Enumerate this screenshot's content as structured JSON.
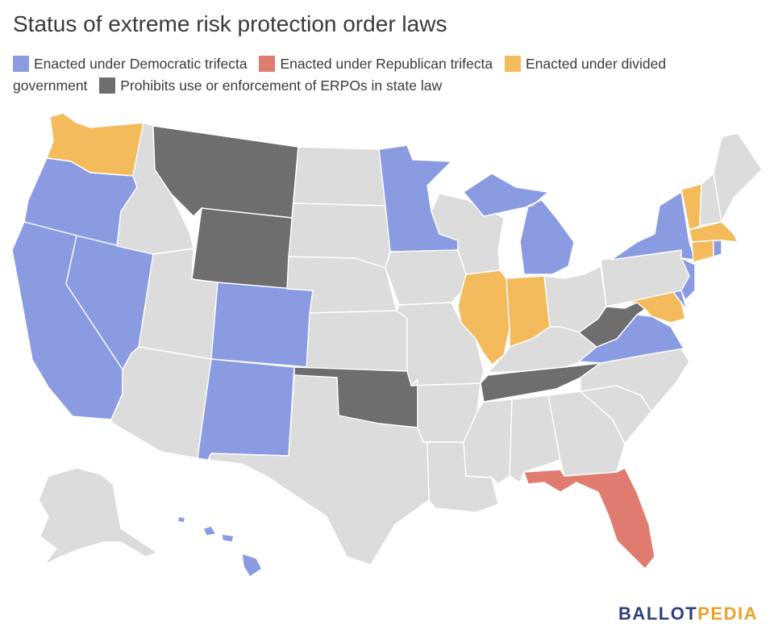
{
  "title": "Status of extreme risk protection order laws",
  "legend": [
    {
      "key": "dem",
      "label": "Enacted under Democratic trifecta",
      "color": "#8a9be2"
    },
    {
      "key": "rep",
      "label": "Enacted under Republican trifecta",
      "color": "#e07b6f"
    },
    {
      "key": "div",
      "label": "Enacted under divided government",
      "color": "#f4bb5c"
    },
    {
      "key": "pro",
      "label": "Prohibits use or enforcement of ERPOs in state law",
      "color": "#6e6e6e"
    }
  ],
  "colors": {
    "none": "#dcdcdc",
    "dem": "#8a9be2",
    "rep": "#e07b6f",
    "div": "#f4bb5c",
    "pro": "#6e6e6e"
  },
  "states": {
    "WA": "div",
    "OR": "dem",
    "CA": "dem",
    "NV": "dem",
    "ID": "none",
    "MT": "pro",
    "WY": "pro",
    "UT": "none",
    "AZ": "none",
    "CO": "dem",
    "NM": "dem",
    "ND": "none",
    "SD": "none",
    "NE": "none",
    "KS": "none",
    "OK": "pro",
    "TX": "none",
    "MN": "dem",
    "IA": "none",
    "MO": "none",
    "AR": "none",
    "LA": "none",
    "WI": "none",
    "IL": "div",
    "MI": "dem",
    "IN": "div",
    "OH": "none",
    "KY": "none",
    "TN": "pro",
    "MS": "none",
    "AL": "none",
    "GA": "none",
    "FL": "rep",
    "SC": "none",
    "NC": "none",
    "VA": "dem",
    "WV": "pro",
    "MD": "div",
    "DE": "dem",
    "NJ": "dem",
    "PA": "none",
    "NY": "dem",
    "VT": "div",
    "NH": "none",
    "ME": "none",
    "MA": "div",
    "CT": "div",
    "RI": "dem",
    "AK": "none",
    "HI": "dem"
  },
  "brand": {
    "part1": "BALLOT",
    "part2": "PEDIA"
  }
}
